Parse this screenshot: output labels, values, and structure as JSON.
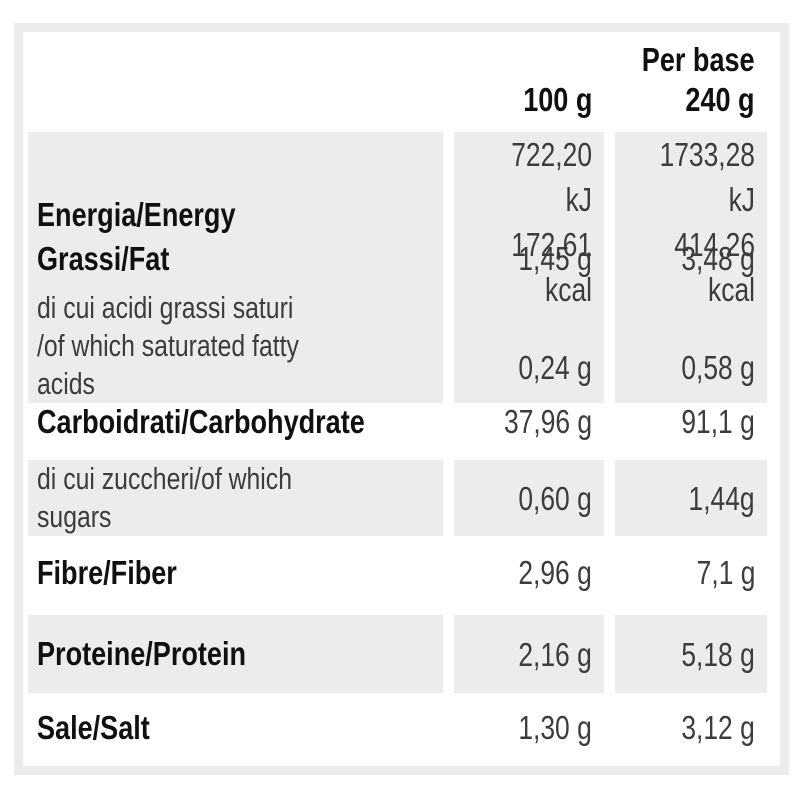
{
  "table": {
    "header": {
      "col_100_label": "100 g",
      "col_240_label": "Per base\n240 g"
    },
    "rows": [
      {
        "label": "Energia/Energy",
        "v100": "722,20 kJ\n172,61 kcal",
        "v240": "1733,28 kJ\n414,26 kcal"
      },
      {
        "label": "Grassi/Fat",
        "v100": "1,45 g",
        "v240": "3,48 g"
      },
      {
        "label": "di cui acidi grassi saturi\n/of which saturated fatty acids",
        "v100": "0,24 g",
        "v240": "0,58 g"
      },
      {
        "label": "Carboidrati/Carbohydrate",
        "v100": "37,96 g",
        "v240": "91,1 g"
      },
      {
        "label": "di cui zuccheri/of which sugars",
        "v100": "0,60 g",
        "v240": "1,44g"
      },
      {
        "label": "Fibre/Fiber",
        "v100": "2,96 g",
        "v240": "7,1 g"
      },
      {
        "label": "Proteine/Protein",
        "v100": "2,16 g",
        "v240": "5,18 g"
      },
      {
        "label": "Sale/Salt",
        "v100": "1,30 g",
        "v240": "3,12 g"
      }
    ],
    "colors": {
      "shade": "#ececec",
      "label_text": "#101010",
      "value_text": "#3c3c3c",
      "background": "#ffffff"
    }
  }
}
